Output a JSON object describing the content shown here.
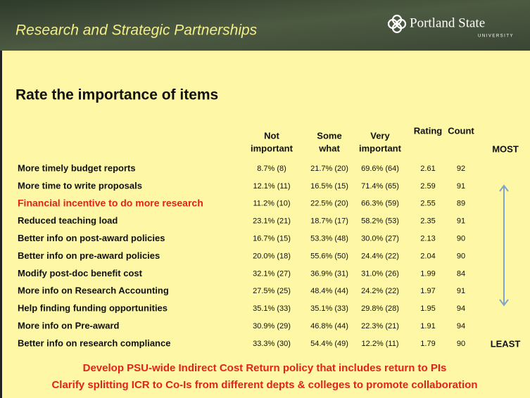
{
  "header": {
    "title": "Research and Strategic Partnerships",
    "logo": "Portland State",
    "logo_sub": "UNIVERSITY"
  },
  "heading": "Rate the importance of items",
  "table": {
    "columns": [
      [
        "Not",
        "important"
      ],
      [
        "Some",
        "what"
      ],
      [
        "Very",
        "important"
      ],
      [
        "Rating"
      ],
      [
        "Count"
      ]
    ],
    "highlight_row": 2,
    "highlight_color": "#e3231b",
    "rows": [
      [
        "More timely budget reports",
        "8.7% (8)",
        "21.7% (20)",
        "69.6% (64)",
        2.61,
        92
      ],
      [
        "More time to write proposals",
        "12.1% (11)",
        "16.5% (15)",
        "71.4% (65)",
        2.59,
        91
      ],
      [
        "Financial incentive to do more research",
        "11.2% (10)",
        "22.5% (20)",
        "66.3% (59)",
        2.55,
        89
      ],
      [
        "Reduced teaching load",
        "23.1% (21)",
        "18.7% (17)",
        "58.2% (53)",
        2.35,
        91
      ],
      [
        "Better info on post-award policies",
        "16.7% (15)",
        "53.3% (48)",
        "30.0% (27)",
        2.13,
        90
      ],
      [
        "Better info on pre-award policies",
        "20.0% (18)",
        "55.6% (50)",
        "24.4% (22)",
        2.04,
        90
      ],
      [
        "Modify post-doc benefit cost",
        "32.1% (27)",
        "36.9% (31)",
        "31.0% (26)",
        1.99,
        84
      ],
      [
        "More info on Research Accounting",
        "27.5% (25)",
        "48.4% (44)",
        "24.2% (22)",
        1.97,
        91
      ],
      [
        "Help finding funding opportunities",
        "35.1% (33)",
        "35.1% (33)",
        "29.8% (28)",
        1.95,
        94
      ],
      [
        "More info on Pre-award",
        "30.9% (29)",
        "46.8% (44)",
        "22.3% (21)",
        1.91,
        94
      ],
      [
        "Better info on research compliance",
        "33.3% (30)",
        "54.4% (49)",
        "12.2% (11)",
        1.79,
        90
      ]
    ]
  },
  "scale": {
    "top": "MOST",
    "bottom": "LEAST"
  },
  "footer": [
    "Develop PSU-wide Indirect Cost Return policy that includes return to PIs",
    "Clarify splitting ICR to Co-Is from different depts & colleges to promote collaboration"
  ]
}
